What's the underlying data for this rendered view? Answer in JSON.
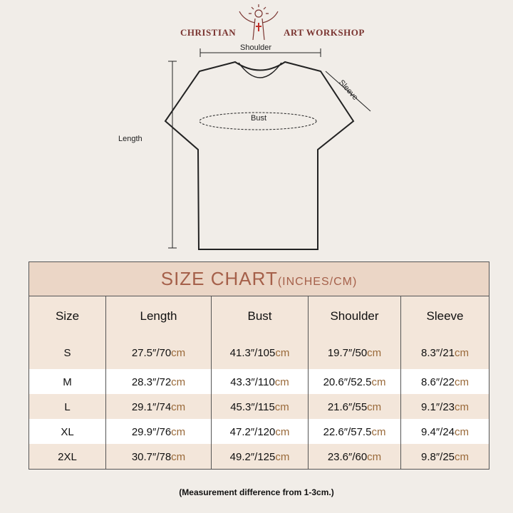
{
  "brand": {
    "left": "CHRISTIAN",
    "right": "ART WORKSHOP"
  },
  "diagram": {
    "shoulder": "Shoulder",
    "sleeve": "Sleeve",
    "bust": "Bust",
    "length": "Length"
  },
  "table": {
    "title": "SIZE CHART",
    "title_unit": "(INCHES/CM)",
    "headers": [
      "Size",
      "Length",
      "Bust",
      "Shoulder",
      "Sleeve"
    ],
    "rows": [
      {
        "size": "S",
        "cells": [
          [
            "27.5″/70",
            "cm"
          ],
          [
            "41.3″/105",
            "cm"
          ],
          [
            "19.7″/50",
            "cm"
          ],
          [
            "8.3″/21",
            "cm"
          ]
        ]
      },
      {
        "size": "M",
        "cells": [
          [
            "28.3″/72",
            "cm"
          ],
          [
            "43.3″/110",
            "cm"
          ],
          [
            "20.6″/52.5",
            "cm"
          ],
          [
            "8.6″/22",
            "cm"
          ]
        ]
      },
      {
        "size": "L",
        "cells": [
          [
            "29.1″/74",
            "cm"
          ],
          [
            "45.3″/115",
            "cm"
          ],
          [
            "21.6″/55",
            "cm"
          ],
          [
            "9.1″/23",
            "cm"
          ]
        ]
      },
      {
        "size": "XL",
        "cells": [
          [
            "29.9″/76",
            "cm"
          ],
          [
            "47.2″/120",
            "cm"
          ],
          [
            "22.6″/57.5",
            "cm"
          ],
          [
            "9.4″/24",
            "cm"
          ]
        ]
      },
      {
        "size": "2XL",
        "cells": [
          [
            "30.7″/78",
            "cm"
          ],
          [
            "49.2″/125",
            "cm"
          ],
          [
            "23.6″/60",
            "cm"
          ],
          [
            "9.8″/25",
            "cm"
          ]
        ]
      }
    ]
  },
  "note": "(Measurement difference from 1-3cm.)",
  "colors": {
    "brand": "#7a3430",
    "title_bg": "#ebd6c6",
    "title_text": "#a5604a",
    "cm": "#9a6a3a"
  }
}
